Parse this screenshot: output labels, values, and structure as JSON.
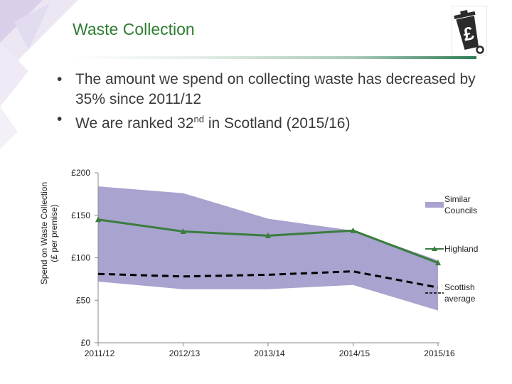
{
  "slide": {
    "title": "Waste Collection",
    "bullets": [
      {
        "text": "The amount we spend on collecting waste has decreased by 35% since 2011/12"
      },
      {
        "text_before": "We are ranked 32",
        "superscript": "nd",
        "text_after": " in Scotland (2015/16)"
      }
    ]
  },
  "colors": {
    "title": "#2e7d32",
    "band": "#a9a3cf",
    "highland": "#3a7d3f",
    "average": "#000000",
    "decoration": "#7b5ea7"
  },
  "icons": {
    "logo": "waste-bin-pound-icon"
  },
  "chart_data": {
    "type": "line",
    "categories": [
      "2011/12",
      "2012/13",
      "2013/14",
      "2014/15",
      "2015/16"
    ],
    "ylabel_lines": [
      "Spend on Waste Collection",
      "(£ per premise)"
    ],
    "y_ticks": [
      "£0",
      "£50",
      "£100",
      "£150",
      "£200"
    ],
    "ylim": [
      0,
      200
    ],
    "band": {
      "name": "Similar Councils",
      "upper": [
        184,
        176,
        146,
        132,
        97
      ],
      "lower": [
        72,
        63,
        63,
        68,
        38
      ]
    },
    "series": [
      {
        "name": "Highland",
        "style": "solid",
        "marker": "triangle",
        "values": [
          145,
          131,
          126,
          132,
          94
        ]
      },
      {
        "name": "Scottish average",
        "style": "dashed",
        "values": [
          81,
          78,
          80,
          84,
          65
        ]
      }
    ],
    "legend": [
      {
        "lines": [
          "Similar",
          "Councils"
        ],
        "kind": "band"
      },
      {
        "lines": [
          "Highland"
        ],
        "kind": "highland"
      },
      {
        "lines": [
          "Scottish",
          "average"
        ],
        "kind": "average"
      }
    ],
    "legend_position": "right",
    "grid": false
  }
}
